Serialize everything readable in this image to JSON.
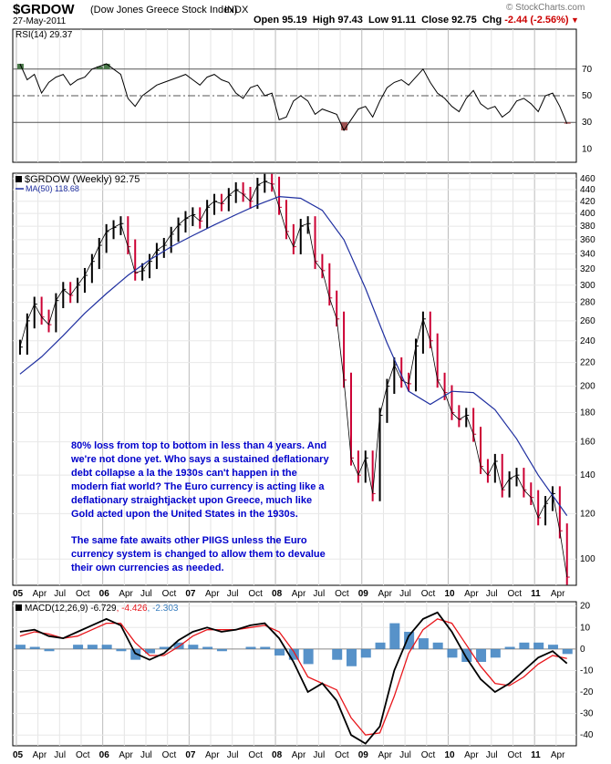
{
  "header": {
    "symbol": "$GRDOW",
    "name": "(Dow Jones Greece Stock Index)",
    "exchange": "INDX",
    "date": "27-May-2011",
    "open_label": "Open",
    "open": "95.19",
    "high_label": "High",
    "high": "97.43",
    "low_label": "Low",
    "low": "91.11",
    "close_label": "Close",
    "close": "92.75",
    "chg_label": "Chg",
    "chg": "-2.44 (-2.56%)",
    "brand": "© StockCharts.com"
  },
  "annotation": {
    "p1": "80% loss from top to bottom in less than 4 years. And we're not done yet. Who says a sustained deflationary debt collapse a la the 1930s can't happen in the modern fiat world? The Euro currency is acting like a deflationary straightjacket upon Greece, much like Gold acted upon the United States in the 1930s.",
    "p2": "The same fate awaits other PIIGS unless the Euro currency system is changed to allow them to devalue their own currencies as needed."
  },
  "colors": {
    "price_up": "#000000",
    "price_down": "#cc0033",
    "ma": "#1f2fa0",
    "macd": "#000000",
    "signal": "#e8161b",
    "hist": "#3a7fc0",
    "rsi_over": "#4a7a4a",
    "rsi_under": "#a05050",
    "annotation": "#0000cc"
  },
  "chart_data": [
    {
      "type": "line",
      "panel": "rsi",
      "title": "RSI(14) 29.37",
      "ylim": [
        0,
        100
      ],
      "y_ticks": [
        10,
        30,
        50,
        70
      ],
      "reference_lines": [
        30,
        50,
        70
      ],
      "x": [
        "2005-01",
        "2005-02",
        "2005-03",
        "2005-04",
        "2005-05",
        "2005-06",
        "2005-07",
        "2005-08",
        "2005-09",
        "2005-10",
        "2005-11",
        "2005-12",
        "2006-01",
        "2006-02",
        "2006-03",
        "2006-04",
        "2006-05",
        "2006-06",
        "2006-07",
        "2006-08",
        "2006-09",
        "2006-10",
        "2006-11",
        "2006-12",
        "2007-01",
        "2007-02",
        "2007-03",
        "2007-04",
        "2007-05",
        "2007-06",
        "2007-07",
        "2007-08",
        "2007-09",
        "2007-10",
        "2007-11",
        "2007-12",
        "2008-01",
        "2008-02",
        "2008-03",
        "2008-04",
        "2008-05",
        "2008-06",
        "2008-07",
        "2008-08",
        "2008-09",
        "2008-10",
        "2008-11",
        "2008-12",
        "2009-01",
        "2009-02",
        "2009-03",
        "2009-04",
        "2009-05",
        "2009-06",
        "2009-07",
        "2009-08",
        "2009-09",
        "2009-10",
        "2009-11",
        "2009-12",
        "2010-01",
        "2010-02",
        "2010-03",
        "2010-04",
        "2010-05",
        "2010-06",
        "2010-07",
        "2010-08",
        "2010-09",
        "2010-10",
        "2010-11",
        "2010-12",
        "2011-01",
        "2011-02",
        "2011-03",
        "2011-04",
        "2011-05"
      ],
      "values": [
        74,
        62,
        66,
        52,
        60,
        64,
        66,
        58,
        62,
        64,
        70,
        72,
        74,
        70,
        66,
        48,
        42,
        50,
        54,
        58,
        60,
        62,
        64,
        66,
        62,
        58,
        64,
        66,
        62,
        60,
        52,
        48,
        56,
        58,
        50,
        52,
        32,
        34,
        46,
        50,
        46,
        36,
        40,
        38,
        36,
        24,
        32,
        40,
        42,
        34,
        46,
        56,
        60,
        62,
        58,
        64,
        70,
        60,
        52,
        48,
        42,
        38,
        48,
        54,
        44,
        40,
        42,
        34,
        38,
        46,
        48,
        44,
        38,
        50,
        52,
        42,
        29
      ]
    },
    {
      "type": "line",
      "panel": "price",
      "title": "$GRDOW (Weekly) 92.75",
      "scale": "log",
      "ylim": [
        90,
        470
      ],
      "y_ticks": [
        100,
        120,
        140,
        160,
        180,
        200,
        220,
        240,
        260,
        280,
        300,
        320,
        340,
        360,
        380,
        400,
        420,
        440,
        460
      ],
      "x_ticks": [
        "05",
        "Apr",
        "Jul",
        "Oct",
        "06",
        "Apr",
        "Jul",
        "Oct",
        "07",
        "Apr",
        "Jul",
        "Oct",
        "08",
        "Apr",
        "Jul",
        "Oct",
        "09",
        "Apr",
        "Jul",
        "Oct",
        "10",
        "Apr",
        "Jul",
        "Oct",
        "11",
        "Apr"
      ],
      "series": [
        {
          "name": "$GRDOW",
          "x": [
            "2005-01",
            "2005-02",
            "2005-03",
            "2005-04",
            "2005-05",
            "2005-06",
            "2005-07",
            "2005-08",
            "2005-09",
            "2005-10",
            "2005-11",
            "2005-12",
            "2006-01",
            "2006-02",
            "2006-03",
            "2006-04",
            "2006-05",
            "2006-06",
            "2006-07",
            "2006-08",
            "2006-09",
            "2006-10",
            "2006-11",
            "2006-12",
            "2007-01",
            "2007-02",
            "2007-03",
            "2007-04",
            "2007-05",
            "2007-06",
            "2007-07",
            "2007-08",
            "2007-09",
            "2007-10",
            "2007-11",
            "2007-12",
            "2008-01",
            "2008-02",
            "2008-03",
            "2008-04",
            "2008-05",
            "2008-06",
            "2008-07",
            "2008-08",
            "2008-09",
            "2008-10",
            "2008-11",
            "2008-12",
            "2009-01",
            "2009-02",
            "2009-03",
            "2009-04",
            "2009-05",
            "2009-06",
            "2009-07",
            "2009-08",
            "2009-09",
            "2009-10",
            "2009-11",
            "2009-12",
            "2010-01",
            "2010-02",
            "2010-03",
            "2010-04",
            "2010-05",
            "2010-06",
            "2010-07",
            "2010-08",
            "2010-09",
            "2010-10",
            "2010-11",
            "2010-12",
            "2011-01",
            "2011-02",
            "2011-03",
            "2011-04",
            "2011-05"
          ],
          "values": [
            234,
            260,
            278,
            264,
            256,
            282,
            295,
            288,
            300,
            312,
            330,
            352,
            372,
            378,
            384,
            350,
            315,
            318,
            330,
            345,
            352,
            368,
            382,
            392,
            398,
            388,
            410,
            420,
            416,
            430,
            440,
            432,
            420,
            448,
            455,
            450,
            410,
            372,
            350,
            380,
            384,
            330,
            318,
            285,
            262,
            205,
            150,
            140,
            150,
            130,
            178,
            200,
            218,
            205,
            202,
            235,
            262,
            240,
            205,
            195,
            180,
            175,
            178,
            165,
            145,
            140,
            148,
            132,
            138,
            140,
            132,
            128,
            118,
            125,
            130,
            112,
            93
          ]
        },
        {
          "name": "MA(50) 118.68",
          "x": [
            "2005-01",
            "2005-04",
            "2005-07",
            "2005-10",
            "2006-01",
            "2006-04",
            "2006-07",
            "2006-10",
            "2007-01",
            "2007-04",
            "2007-07",
            "2007-10",
            "2008-01",
            "2008-04",
            "2008-07",
            "2008-10",
            "2009-01",
            "2009-04",
            "2009-07",
            "2009-10",
            "2010-01",
            "2010-04",
            "2010-07",
            "2010-10",
            "2011-01",
            "2011-04",
            "2011-05"
          ],
          "values": [
            210,
            225,
            245,
            268,
            290,
            312,
            332,
            350,
            366,
            382,
            398,
            414,
            428,
            425,
            405,
            360,
            296,
            238,
            196,
            186,
            196,
            195,
            182,
            162,
            140,
            124,
            119
          ]
        }
      ]
    },
    {
      "type": "line",
      "panel": "macd",
      "title": "MACD(12,26,9) -6.729, -4.426, -2.303",
      "ylim": [
        -45,
        22
      ],
      "y_ticks": [
        -40,
        -30,
        -20,
        -10,
        0,
        10,
        20
      ],
      "series": [
        {
          "name": "MACD",
          "x": [
            "2005-01",
            "2005-03",
            "2005-05",
            "2005-07",
            "2005-09",
            "2005-11",
            "2006-01",
            "2006-03",
            "2006-05",
            "2006-07",
            "2006-09",
            "2006-11",
            "2007-01",
            "2007-03",
            "2007-05",
            "2007-07",
            "2007-09",
            "2007-11",
            "2008-01",
            "2008-03",
            "2008-05",
            "2008-07",
            "2008-09",
            "2008-11",
            "2009-01",
            "2009-03",
            "2009-05",
            "2009-07",
            "2009-09",
            "2009-11",
            "2010-01",
            "2010-03",
            "2010-05",
            "2010-07",
            "2010-09",
            "2010-11",
            "2011-01",
            "2011-03",
            "2011-05"
          ],
          "values": [
            8,
            9,
            6,
            5,
            8,
            11,
            14,
            11,
            -2,
            -5,
            -2,
            4,
            8,
            10,
            8,
            9,
            11,
            12,
            5,
            -6,
            -20,
            -16,
            -24,
            -40,
            -44,
            -36,
            -10,
            6,
            14,
            17,
            8,
            -4,
            -14,
            -20,
            -16,
            -10,
            -4,
            -1,
            -6.729
          ]
        },
        {
          "name": "Signal",
          "x": [
            "2005-01",
            "2005-03",
            "2005-05",
            "2005-07",
            "2005-09",
            "2005-11",
            "2006-01",
            "2006-03",
            "2006-05",
            "2006-07",
            "2006-09",
            "2006-11",
            "2007-01",
            "2007-03",
            "2007-05",
            "2007-07",
            "2007-09",
            "2007-11",
            "2008-01",
            "2008-03",
            "2008-05",
            "2008-07",
            "2008-09",
            "2008-11",
            "2009-01",
            "2009-03",
            "2009-05",
            "2009-07",
            "2009-09",
            "2009-11",
            "2010-01",
            "2010-03",
            "2010-05",
            "2010-07",
            "2010-09",
            "2010-11",
            "2011-01",
            "2011-03",
            "2011-05"
          ],
          "values": [
            6,
            8,
            7,
            5,
            6,
            9,
            12,
            12,
            3,
            -3,
            -3,
            1,
            6,
            9,
            9,
            9,
            10,
            11,
            8,
            -1,
            -13,
            -16,
            -19,
            -32,
            -40,
            -39,
            -22,
            -2,
            9,
            14,
            12,
            2,
            -8,
            -16,
            -17,
            -13,
            -7,
            -3,
            -4.426
          ]
        },
        {
          "name": "Histogram",
          "x": [
            "2005-01",
            "2005-03",
            "2005-05",
            "2005-07",
            "2005-09",
            "2005-11",
            "2006-01",
            "2006-03",
            "2006-05",
            "2006-07",
            "2006-09",
            "2006-11",
            "2007-01",
            "2007-03",
            "2007-05",
            "2007-07",
            "2007-09",
            "2007-11",
            "2008-01",
            "2008-03",
            "2008-05",
            "2008-07",
            "2008-09",
            "2008-11",
            "2009-01",
            "2009-03",
            "2009-05",
            "2009-07",
            "2009-09",
            "2009-11",
            "2010-01",
            "2010-03",
            "2010-05",
            "2010-07",
            "2010-09",
            "2010-11",
            "2011-01",
            "2011-03",
            "2011-05"
          ],
          "values": [
            2,
            1,
            -1,
            0,
            2,
            2,
            2,
            -1,
            -5,
            -2,
            1,
            3,
            2,
            1,
            -1,
            0,
            1,
            1,
            -3,
            -5,
            -7,
            0,
            -5,
            -8,
            -4,
            3,
            12,
            8,
            5,
            3,
            -4,
            -6,
            -6,
            -4,
            1,
            3,
            3,
            2,
            -2.303
          ]
        }
      ]
    }
  ]
}
